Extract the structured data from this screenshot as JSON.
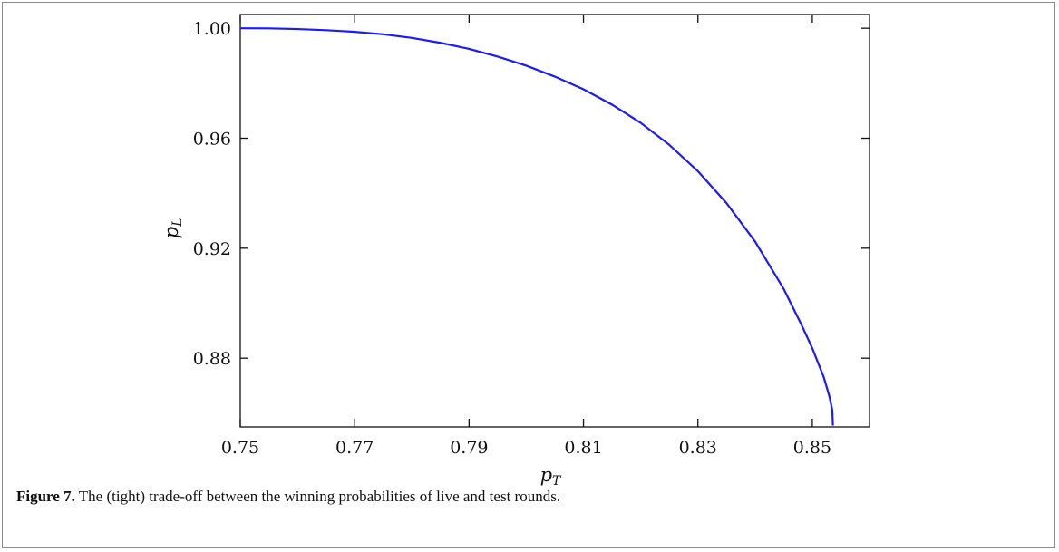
{
  "chart_data": {
    "type": "line",
    "xlabel": {
      "main": "p",
      "sub": "T"
    },
    "ylabel": {
      "main": "p",
      "sub": "L"
    },
    "xlim": [
      0.75,
      0.86
    ],
    "ylim": [
      0.855,
      1.005
    ],
    "xticks": [
      0.75,
      0.77,
      0.79,
      0.81,
      0.83,
      0.85
    ],
    "xtick_labels": [
      "0.75",
      "0.77",
      "0.79",
      "0.81",
      "0.83",
      "0.85"
    ],
    "yticks": [
      0.88,
      0.92,
      0.96,
      1.0
    ],
    "ytick_labels": [
      "0.88",
      "0.92",
      "0.96",
      "1.00"
    ],
    "grid": false,
    "series_color": "#1a1aff",
    "series": [
      {
        "x": [
          0.75,
          0.755,
          0.76,
          0.765,
          0.77,
          0.775,
          0.78,
          0.785,
          0.79,
          0.795,
          0.8,
          0.805,
          0.81,
          0.815,
          0.82,
          0.825,
          0.83,
          0.835,
          0.84,
          0.845,
          0.848,
          0.85,
          0.852,
          0.853,
          0.8535,
          0.8536
        ],
        "y": [
          1.0,
          0.99995,
          0.9997,
          0.9993,
          0.9987,
          0.9978,
          0.9965,
          0.9947,
          0.9925,
          0.9897,
          0.9864,
          0.9824,
          0.9778,
          0.9722,
          0.9656,
          0.9576,
          0.948,
          0.9364,
          0.9224,
          0.9052,
          0.8926,
          0.8836,
          0.8731,
          0.866,
          0.861,
          0.8555
        ]
      }
    ]
  },
  "caption": {
    "label": "Figure 7.",
    "text": " The (tight) trade-off between the winning probabilities of live and test rounds."
  }
}
